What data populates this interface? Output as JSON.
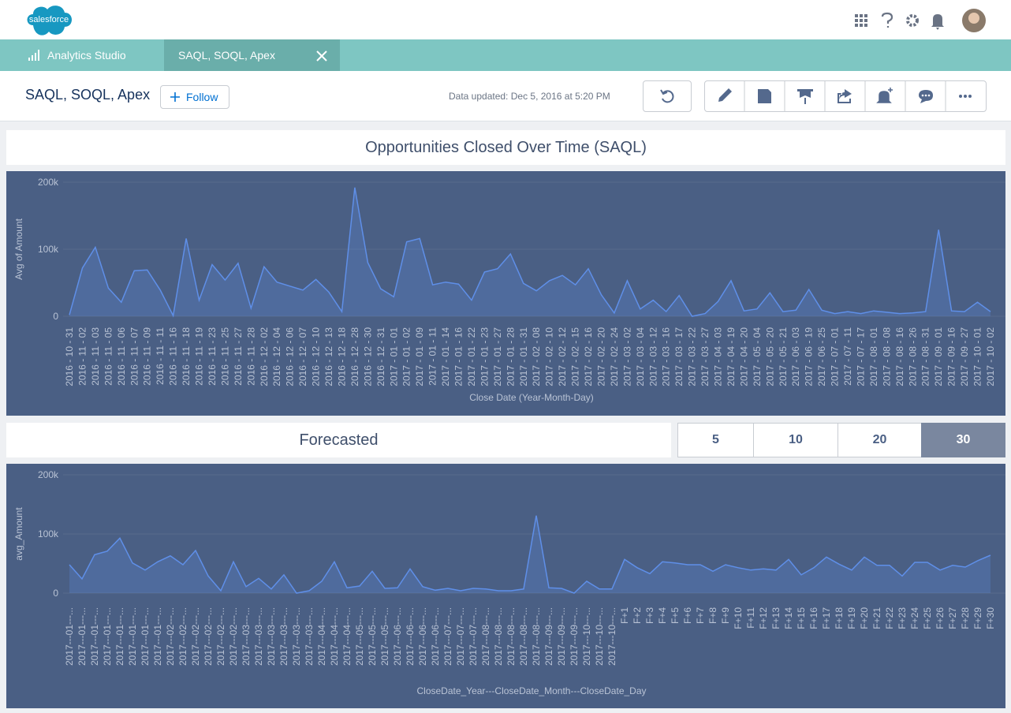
{
  "header": {
    "logo": "salesforce"
  },
  "tabs": [
    {
      "label": "Analytics Studio"
    },
    {
      "label": "SAQL, SOQL, Apex"
    }
  ],
  "page": {
    "title": "SAQL, SOQL, Apex",
    "follow": "Follow",
    "updated": "Data updated: Dec 5, 2016 at 5:20 PM"
  },
  "forecast_buttons": {
    "options": [
      "5",
      "10",
      "20",
      "30"
    ],
    "selected": "30"
  },
  "chart_data": [
    {
      "type": "line",
      "title": "Opportunities Closed Over Time (SAQL)",
      "x_label": "Close Date (Year-Month-Day)",
      "y_label": "Avg of Amount",
      "color": "#5f8fe8",
      "grid": true,
      "ylim": [
        0,
        200000
      ],
      "yticks": [
        {
          "value": 0,
          "label": "0"
        },
        {
          "value": 100000,
          "label": "100k"
        },
        {
          "value": 200000,
          "label": "200k"
        }
      ],
      "categories": [
        "2016 - 10 - 31",
        "2016 - 11 - 02",
        "2016 - 11 - 03",
        "2016 - 11 - 05",
        "2016 - 11 - 06",
        "2016 - 11 - 07",
        "2016 - 11 - 09",
        "2016 - 11 - 11",
        "2016 - 11 - 16",
        "2016 - 11 - 18",
        "2016 - 11 - 19",
        "2016 - 11 - 23",
        "2016 - 11 - 25",
        "2016 - 11 - 27",
        "2016 - 11 - 28",
        "2016 - 12 - 02",
        "2016 - 12 - 04",
        "2016 - 12 - 06",
        "2016 - 12 - 07",
        "2016 - 12 - 10",
        "2016 - 12 - 13",
        "2016 - 12 - 18",
        "2016 - 12 - 28",
        "2016 - 12 - 30",
        "2016 - 12 - 31",
        "2017 - 01 - 01",
        "2017 - 01 - 02",
        "2017 - 01 - 09",
        "2017 - 01 - 11",
        "2017 - 01 - 14",
        "2017 - 01 - 16",
        "2017 - 01 - 22",
        "2017 - 01 - 23",
        "2017 - 01 - 27",
        "2017 - 01 - 28",
        "2017 - 01 - 31",
        "2017 - 02 - 08",
        "2017 - 02 - 10",
        "2017 - 02 - 12",
        "2017 - 02 - 15",
        "2017 - 02 - 16",
        "2017 - 02 - 20",
        "2017 - 02 - 24",
        "2017 - 03 - 02",
        "2017 - 03 - 04",
        "2017 - 03 - 12",
        "2017 - 03 - 16",
        "2017 - 03 - 17",
        "2017 - 03 - 22",
        "2017 - 03 - 27",
        "2017 - 04 - 03",
        "2017 - 04 - 19",
        "2017 - 04 - 20",
        "2017 - 05 - 04",
        "2017 - 05 - 20",
        "2017 - 05 - 21",
        "2017 - 06 - 03",
        "2017 - 06 - 19",
        "2017 - 06 - 25",
        "2017 - 07 - 01",
        "2017 - 07 - 11",
        "2017 - 07 - 17",
        "2017 - 08 - 01",
        "2017 - 08 - 08",
        "2017 - 08 - 16",
        "2017 - 08 - 26",
        "2017 - 08 - 31",
        "2017 - 09 - 01",
        "2017 - 09 - 16",
        "2017 - 09 - 27",
        "2017 - 10 - 01",
        "2017 - 10 - 02"
      ],
      "values": [
        2000,
        72000,
        103000,
        42000,
        21000,
        68000,
        69000,
        39000,
        1000,
        116000,
        24000,
        77000,
        54000,
        79000,
        12000,
        74000,
        51000,
        45000,
        39000,
        55000,
        36000,
        7000,
        192000,
        80000,
        41000,
        29000,
        111000,
        116000,
        47000,
        51000,
        48000,
        24000,
        66000,
        71000,
        93000,
        49000,
        38000,
        53000,
        61000,
        47000,
        71000,
        32000,
        5000,
        53000,
        11000,
        24000,
        7000,
        31000,
        0,
        4000,
        22000,
        53000,
        8000,
        11000,
        35000,
        7000,
        9000,
        40000,
        9000,
        4000,
        7000,
        4000,
        8000,
        6000,
        4000,
        5000,
        7000,
        129000,
        8000,
        7000,
        21000,
        7000
      ]
    },
    {
      "type": "line",
      "title": "Forecasted",
      "x_label": "CloseDate_Year---CloseDate_Month---CloseDate_Day",
      "y_label": "avg_Amount",
      "color": "#5f8fe8",
      "grid": true,
      "ylim": [
        0,
        200000
      ],
      "yticks": [
        {
          "value": 0,
          "label": "0"
        },
        {
          "value": 100000,
          "label": "100k"
        },
        {
          "value": 200000,
          "label": "200k"
        }
      ],
      "categories": [
        "2017---01---...",
        "2017---01---...",
        "2017---01---...",
        "2017---01---...",
        "2017---01---...",
        "2017---01---...",
        "2017---01---...",
        "2017---01---...",
        "2017---02---...",
        "2017---02---...",
        "2017---02---...",
        "2017---02---...",
        "2017---02---...",
        "2017---02---...",
        "2017---03---...",
        "2017---03---...",
        "2017---03---...",
        "2017---03---...",
        "2017---03---...",
        "2017---03---...",
        "2017---04---...",
        "2017---04---...",
        "2017---04---...",
        "2017---05---...",
        "2017---05---...",
        "2017---05---...",
        "2017---06---...",
        "2017---06---...",
        "2017---06---...",
        "2017---06---...",
        "2017---07---...",
        "2017---07---...",
        "2017---07---...",
        "2017---08---...",
        "2017---08---...",
        "2017---08---...",
        "2017---08---...",
        "2017---08---...",
        "2017---09---...",
        "2017---09---...",
        "2017---09---...",
        "2017---10---...",
        "2017---10---...",
        "2017---10---...",
        "F+1",
        "F+2",
        "F+3",
        "F+4",
        "F+5",
        "F+6",
        "F+7",
        "F+8",
        "F+9",
        "F+10",
        "F+11",
        "F+12",
        "F+13",
        "F+14",
        "F+15",
        "F+16",
        "F+17",
        "F+18",
        "F+19",
        "F+20",
        "F+21",
        "F+22",
        "F+23",
        "F+24",
        "F+25",
        "F+26",
        "F+27",
        "F+28",
        "F+29",
        "F+30"
      ],
      "values": [
        48000,
        24000,
        65000,
        71000,
        93000,
        51000,
        39000,
        53000,
        63000,
        48000,
        72000,
        29000,
        4000,
        53000,
        11000,
        25000,
        7000,
        31000,
        0,
        4000,
        20000,
        53000,
        9000,
        12000,
        37000,
        8000,
        9000,
        41000,
        11000,
        5000,
        8000,
        4000,
        8000,
        7000,
        4000,
        4000,
        7000,
        131000,
        9000,
        8000,
        0,
        20000,
        7000,
        7000,
        57000,
        43000,
        33000,
        53000,
        51000,
        48000,
        48000,
        37000,
        48000,
        43000,
        39000,
        41000,
        39000,
        57000,
        31000,
        43000,
        61000,
        49000,
        39000,
        61000,
        47000,
        47000,
        29000,
        52000,
        52000,
        39000,
        47000,
        44000,
        55000,
        64000
      ]
    }
  ]
}
